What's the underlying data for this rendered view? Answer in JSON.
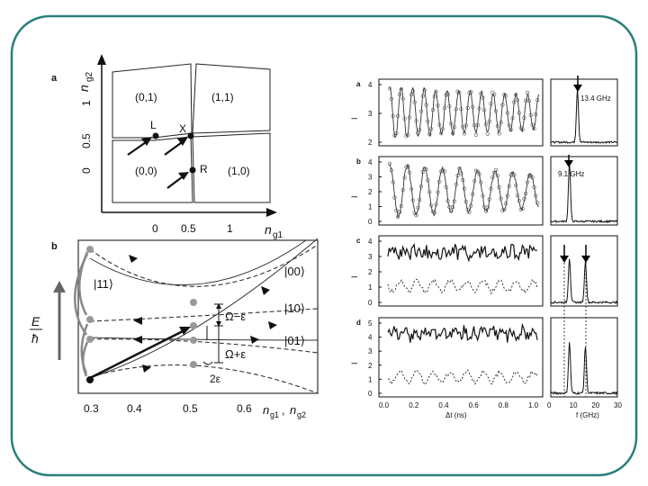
{
  "left": {
    "panel_a": {
      "label": "a",
      "y_axis": {
        "label": "n",
        "sub": "g2",
        "ticks": [
          "0",
          "0.5",
          "1"
        ]
      },
      "x_axis": {
        "label": "n",
        "sub": "g1",
        "ticks": [
          "0",
          "0.5",
          "1"
        ]
      },
      "cells": [
        "(0,1)",
        "(1,1)",
        "(0,0)",
        "(1,0)"
      ],
      "points": [
        "L",
        "X",
        "R"
      ]
    },
    "panel_b": {
      "label": "b",
      "y_axis": {
        "num": "E",
        "den": "ħ"
      },
      "x_axis": {
        "label1": "n",
        "sub1": "g1",
        "sep": ",",
        "label2": "n",
        "sub2": "g2",
        "ticks": [
          "0.3",
          "0.4",
          "0.5",
          "0.6"
        ]
      },
      "states": [
        "|11⟩",
        "|00⟩",
        "|10⟩",
        "|01⟩"
      ],
      "gaps": [
        "Ω−ε",
        "Ω+ε",
        "2ε"
      ]
    }
  },
  "right": {
    "panels": [
      {
        "label": "a",
        "ylabel": "I",
        "yticks": [
          "2",
          "3",
          "4"
        ],
        "freq_label": "13.4 GHz"
      },
      {
        "label": "b",
        "ylabel": "I",
        "yticks": [
          "0",
          "1",
          "2",
          "3",
          "4"
        ],
        "freq_label": "9.1 GHz"
      },
      {
        "label": "c",
        "ylabel": "I",
        "yticks": [
          "0",
          "1",
          "2",
          "3",
          "4"
        ],
        "freq_label": ""
      },
      {
        "label": "d",
        "ylabel": "I",
        "yticks": [
          "0",
          "1",
          "2",
          "3",
          "4",
          "5"
        ],
        "freq_label": ""
      }
    ],
    "time_axis": {
      "ticks": [
        "0.0",
        "0.2",
        "0.4",
        "0.6",
        "0.8",
        "1.0"
      ],
      "label": "Δt (ns)"
    },
    "freq_axis": {
      "ticks": [
        "0",
        "10",
        "20",
        "30"
      ],
      "label": "f (GHz)"
    }
  }
}
